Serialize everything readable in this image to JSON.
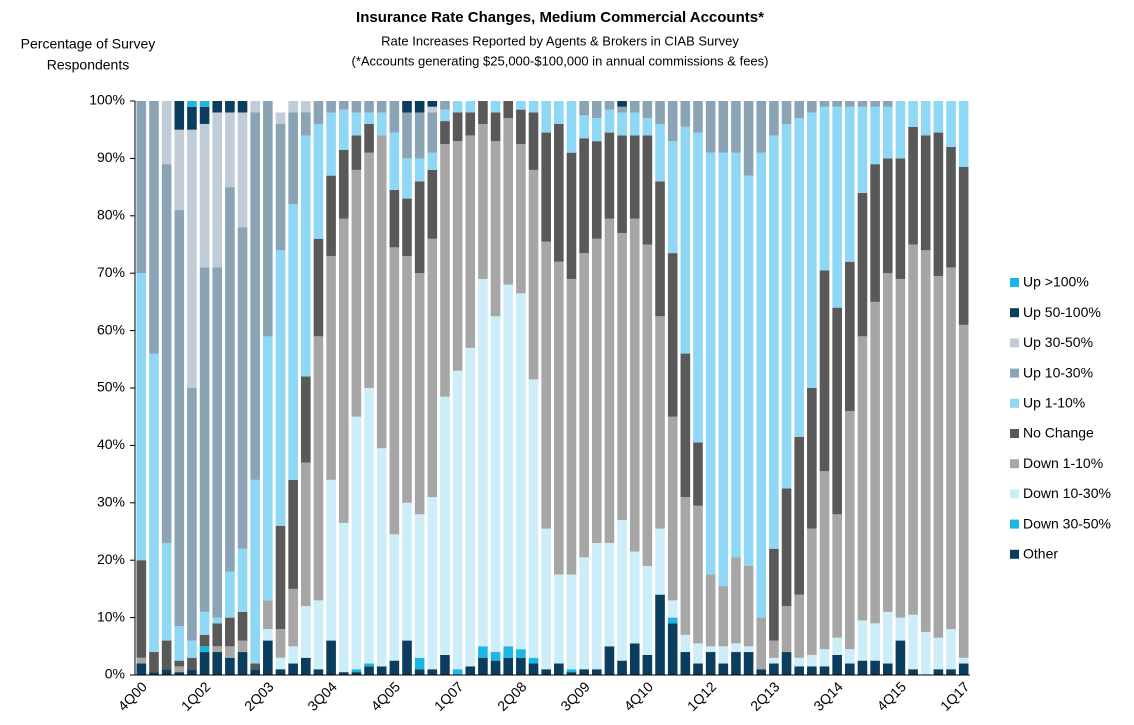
{
  "chart_data": {
    "type": "stacked_bar",
    "title": "Insurance Rate Changes, Medium Commercial Accounts*",
    "subtitle": "Rate Increases Reported by Agents & Brokers in CIAB Survey",
    "note": "(*Accounts generating $25,000-$100,000 in annual commissions & fees)",
    "y_label": [
      "Percentage of Survey",
      "Respondents"
    ],
    "categories": [
      "4Q00",
      null,
      null,
      null,
      null,
      "1Q02",
      null,
      null,
      null,
      null,
      "2Q03",
      null,
      null,
      null,
      null,
      "3Q04",
      null,
      null,
      null,
      null,
      "4Q05",
      null,
      null,
      null,
      null,
      "1Q07",
      null,
      null,
      null,
      null,
      "2Q08",
      null,
      null,
      null,
      null,
      "3Q09",
      null,
      null,
      null,
      null,
      "4Q10",
      null,
      null,
      null,
      null,
      "1Q12",
      null,
      null,
      null,
      null,
      "2Q13",
      null,
      null,
      null,
      null,
      "3Q14",
      null,
      null,
      null,
      null,
      "4Q15",
      null,
      null,
      null,
      null,
      "1Q17"
    ],
    "ylim": [
      0,
      100
    ],
    "yticks": [
      {
        "value": 0,
        "label": "0%"
      },
      {
        "value": 10,
        "label": "10%"
      },
      {
        "value": 20,
        "label": "20%"
      },
      {
        "value": 30,
        "label": "30%"
      },
      {
        "value": 40,
        "label": "40%"
      },
      {
        "value": 50,
        "label": "50%"
      },
      {
        "value": 60,
        "label": "60%"
      },
      {
        "value": 70,
        "label": "70%"
      },
      {
        "value": 80,
        "label": "80%"
      },
      {
        "value": 90,
        "label": "90%"
      },
      {
        "value": 100,
        "label": "100%"
      }
    ],
    "series": [
      {
        "name": "Other",
        "color": "#0b3d5e",
        "values": [
          2,
          0.5,
          1,
          0.5,
          1,
          4,
          4,
          3,
          4,
          1,
          6,
          1,
          2,
          3,
          1,
          6,
          0.5,
          0.5,
          1.5,
          1.5,
          2.5,
          6,
          1,
          1,
          3.5,
          0,
          1.5,
          3,
          2.5,
          3,
          3,
          2,
          1,
          2,
          0.5,
          1,
          1,
          5,
          2.5,
          5.5,
          3.5,
          14,
          9,
          4,
          2,
          4,
          2,
          4,
          4,
          1,
          2,
          4,
          1.5,
          1.5,
          1.5,
          3.5,
          2,
          2.5,
          2.5,
          2,
          6,
          1,
          0,
          1,
          1,
          2
        ]
      },
      {
        "name": "Down 30-50%",
        "color": "#1ab7e6",
        "values": [
          0,
          0,
          0,
          0,
          0,
          1,
          0,
          0,
          0,
          0,
          0,
          0,
          0,
          0,
          0,
          0,
          0,
          0.5,
          0.5,
          0,
          0,
          0,
          2,
          0,
          0,
          1,
          0,
          2,
          1.5,
          2,
          1.5,
          1,
          0,
          0,
          0.5,
          0,
          0,
          0,
          0,
          0,
          0,
          0,
          1,
          0,
          0,
          0,
          0,
          0,
          0,
          0,
          0,
          0,
          0,
          0,
          0,
          0,
          0,
          0,
          0,
          0,
          0,
          0,
          0,
          0,
          0,
          0
        ]
      },
      {
        "name": "Down 10-30%",
        "color": "#cdeef9",
        "values": [
          0,
          0,
          0,
          0,
          0,
          0,
          0,
          0,
          0,
          0,
          2,
          2,
          3,
          9,
          12,
          28,
          26,
          44,
          48,
          38,
          22,
          24,
          25,
          30,
          45,
          52,
          55.5,
          64,
          58.5,
          63,
          62,
          48.5,
          24.5,
          15.5,
          16.5,
          19.5,
          22,
          18,
          24.5,
          16,
          15.5,
          11.5,
          3,
          3,
          3.5,
          1,
          3,
          1.5,
          1,
          0,
          1,
          0,
          1.5,
          2,
          3,
          3,
          2.5,
          7,
          6.5,
          9,
          4,
          9.5,
          7.5,
          5.5,
          7,
          1
        ]
      },
      {
        "name": "Down 1-10%",
        "color": "#a6a6a6",
        "values": [
          1,
          0,
          0,
          1,
          0,
          0,
          1,
          2,
          2,
          0,
          5,
          5,
          10,
          25,
          46,
          39,
          53,
          43,
          41,
          54.5,
          50,
          43,
          42,
          45,
          44,
          40,
          37,
          27,
          30.5,
          29,
          26,
          36.5,
          50,
          54.5,
          51.5,
          53,
          53,
          56.5,
          50,
          58,
          56,
          37,
          32,
          24,
          24,
          12.5,
          10.5,
          15,
          14,
          9,
          3,
          8,
          11,
          22,
          31,
          21.5,
          41.5,
          49.5,
          56,
          59,
          59,
          64.5,
          66.5,
          63,
          63,
          58
        ]
      },
      {
        "name": "No Change",
        "color": "#595959",
        "values": [
          17,
          3.5,
          5,
          1,
          2,
          2,
          4,
          5,
          5,
          1,
          0,
          18,
          19,
          15,
          17,
          14,
          12,
          6,
          5,
          0,
          10,
          10,
          16,
          12,
          4,
          5,
          4,
          4,
          5,
          3,
          6,
          10,
          19,
          24,
          22,
          20,
          17,
          15,
          17,
          14.5,
          19,
          23.5,
          28.5,
          25,
          11,
          0,
          0,
          0,
          0,
          0,
          16,
          20.5,
          27.5,
          24.5,
          35,
          36,
          26,
          25,
          24,
          20,
          21,
          20.5,
          20,
          25,
          21,
          27.5
        ]
      },
      {
        "name": "Up 1-10%",
        "color": "#8fd8f5",
        "values": [
          50,
          52,
          17,
          6,
          3,
          4,
          1,
          8,
          11,
          32,
          46,
          48,
          48,
          42,
          20,
          11,
          7,
          4,
          2,
          4,
          10,
          7,
          4,
          3,
          2,
          2,
          2,
          0,
          2,
          0,
          1.5,
          2,
          5.5,
          4,
          9,
          4,
          4,
          4,
          4,
          4,
          3,
          10,
          19.5,
          39.5,
          54,
          73.5,
          75.5,
          70.5,
          68,
          81,
          72,
          63.5,
          55.5,
          48,
          28.5,
          35,
          27,
          15,
          10,
          9,
          10,
          4.5,
          6,
          5.5,
          8,
          11.5
        ]
      },
      {
        "name": "Up 10-30%",
        "color": "#8aa3b5",
        "values": [
          30,
          44,
          66,
          72.5,
          44,
          60,
          61,
          67,
          56,
          64,
          41,
          22,
          16,
          4,
          4,
          2,
          1.5,
          2,
          2,
          2,
          5.5,
          8,
          8,
          7,
          1.5,
          0,
          0,
          0,
          0,
          0,
          0,
          0,
          0,
          0,
          0,
          2.5,
          3,
          1.5,
          1,
          2,
          3,
          4,
          7,
          4.5,
          5.5,
          9,
          9,
          9,
          13,
          9,
          6,
          4,
          3,
          2,
          1,
          1,
          1,
          1,
          1,
          1,
          0,
          0,
          0,
          0,
          0,
          0
        ]
      },
      {
        "name": "Up 30-50%",
        "color": "#c0cdd8",
        "values": [
          0,
          0,
          11,
          14,
          45,
          25,
          27,
          13,
          20,
          2,
          0,
          2,
          2,
          2,
          0,
          0,
          0,
          0,
          0,
          0,
          0,
          0,
          0,
          1,
          0,
          0,
          0,
          0,
          0,
          0,
          0,
          0,
          0,
          0,
          0,
          0,
          0,
          0,
          0,
          0,
          0,
          0,
          0,
          0,
          0,
          0,
          0,
          0,
          0,
          0,
          0,
          0,
          0,
          0,
          0,
          0,
          0,
          0,
          0,
          0,
          0,
          0,
          0,
          0,
          0,
          0
        ]
      },
      {
        "name": "Up 50-100%",
        "color": "#0b3d5e",
        "values": [
          0,
          0,
          0,
          5,
          4,
          3,
          2,
          2,
          2,
          0,
          0,
          0,
          0,
          0,
          0,
          0,
          0,
          0,
          0,
          0,
          0,
          2,
          2,
          1,
          0,
          0,
          0,
          0,
          0,
          0,
          0,
          0,
          0,
          0,
          0,
          0,
          0,
          0,
          1,
          0,
          0,
          0,
          0,
          0,
          0,
          0,
          0,
          0,
          0,
          0,
          0,
          0,
          0,
          0,
          0,
          0,
          0,
          0,
          0,
          0,
          0,
          0,
          0,
          0,
          0,
          0
        ]
      },
      {
        "name": "Up >100%",
        "color": "#1ab7e6",
        "values": [
          0,
          0,
          0,
          0,
          1,
          1,
          0,
          0,
          0,
          0,
          0,
          0,
          0,
          0,
          0,
          0,
          0,
          0,
          0,
          0,
          0,
          0,
          0,
          0,
          0,
          0,
          0,
          0,
          0,
          0,
          0,
          0,
          0,
          0,
          0,
          0,
          0,
          0,
          0,
          0,
          0,
          0,
          0,
          0,
          0,
          0,
          0,
          0,
          0,
          0,
          0,
          0,
          0,
          0,
          0,
          0,
          0,
          0,
          0,
          0,
          0,
          0,
          0,
          0,
          0,
          0
        ]
      }
    ],
    "legend": "right"
  }
}
